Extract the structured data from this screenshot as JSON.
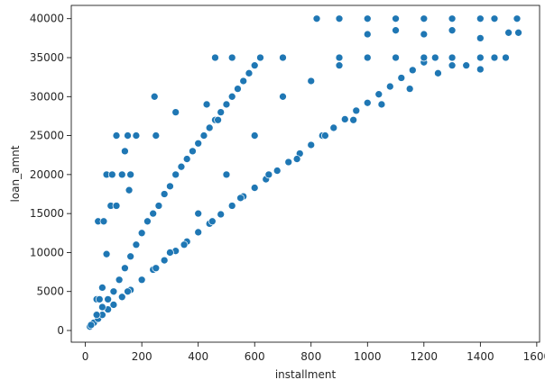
{
  "chart_data": {
    "type": "scatter",
    "title": "",
    "xlabel": "installment",
    "ylabel": "loan_amnt",
    "xlim": [
      -50,
      1610
    ],
    "ylim": [
      -1500,
      41700
    ],
    "xticks": [
      0,
      200,
      400,
      600,
      800,
      1000,
      1200,
      1400,
      1600
    ],
    "yticks": [
      0,
      5000,
      10000,
      15000,
      20000,
      25000,
      30000,
      35000,
      40000
    ],
    "xtick_labels": [
      "0",
      "200",
      "400",
      "600",
      "800",
      "1000",
      "1200",
      "1400",
      "1600"
    ],
    "ytick_labels": [
      "0",
      "5000",
      "10000",
      "15000",
      "20000",
      "25000",
      "30000",
      "35000",
      "40000"
    ],
    "grid": false,
    "legend": "none",
    "marker_color": "#1f77b4",
    "marker_edge_color": "#ffffff",
    "series": [
      {
        "points": [
          [
            16,
            500
          ],
          [
            30,
            1000
          ],
          [
            45,
            1500
          ],
          [
            60,
            2000
          ],
          [
            80,
            2700
          ],
          [
            100,
            3300
          ],
          [
            130,
            4300
          ],
          [
            160,
            5200
          ],
          [
            200,
            6500
          ],
          [
            240,
            7800
          ],
          [
            280,
            9000
          ],
          [
            320,
            10200
          ],
          [
            360,
            11400
          ],
          [
            400,
            12600
          ],
          [
            440,
            13700
          ],
          [
            480,
            14900
          ],
          [
            520,
            16000
          ],
          [
            560,
            17200
          ],
          [
            600,
            18300
          ],
          [
            640,
            19400
          ],
          [
            680,
            20500
          ],
          [
            720,
            21600
          ],
          [
            760,
            22700
          ],
          [
            800,
            23800
          ],
          [
            840,
            25000
          ],
          [
            880,
            26000
          ],
          [
            920,
            27100
          ],
          [
            960,
            28200
          ],
          [
            1000,
            29200
          ],
          [
            1040,
            30300
          ],
          [
            1080,
            31300
          ],
          [
            1120,
            32400
          ],
          [
            1160,
            33400
          ],
          [
            1200,
            34400
          ],
          [
            1240,
            35000
          ],
          [
            20,
            700
          ],
          [
            40,
            2000
          ],
          [
            60,
            3000
          ],
          [
            80,
            4000
          ],
          [
            100,
            5000
          ],
          [
            120,
            6500
          ],
          [
            140,
            8000
          ],
          [
            160,
            9500
          ],
          [
            180,
            11000
          ],
          [
            200,
            12500
          ],
          [
            220,
            14000
          ],
          [
            240,
            15000
          ],
          [
            260,
            16000
          ],
          [
            280,
            17500
          ],
          [
            300,
            18500
          ],
          [
            320,
            20000
          ],
          [
            340,
            21000
          ],
          [
            360,
            22000
          ],
          [
            380,
            23000
          ],
          [
            400,
            24000
          ],
          [
            420,
            25000
          ],
          [
            440,
            26000
          ],
          [
            460,
            27000
          ],
          [
            480,
            28000
          ],
          [
            500,
            29000
          ],
          [
            520,
            30000
          ],
          [
            540,
            31000
          ],
          [
            560,
            32000
          ],
          [
            580,
            33000
          ],
          [
            600,
            34000
          ],
          [
            620,
            35000
          ],
          [
            300,
            10000
          ],
          [
            400,
            15000
          ],
          [
            500,
            20000
          ],
          [
            600,
            25000
          ],
          [
            700,
            30000
          ],
          [
            800,
            32000
          ],
          [
            900,
            34000
          ],
          [
            1000,
            35000
          ],
          [
            1100,
            35000
          ],
          [
            1200,
            35000
          ],
          [
            1300,
            35000
          ],
          [
            1400,
            35000
          ],
          [
            1450,
            35000
          ],
          [
            1350,
            34000
          ],
          [
            1250,
            33000
          ],
          [
            1150,
            31000
          ],
          [
            1050,
            29000
          ],
          [
            950,
            27000
          ],
          [
            850,
            25000
          ],
          [
            750,
            22000
          ],
          [
            650,
            20000
          ],
          [
            550,
            17000
          ],
          [
            450,
            14000
          ],
          [
            350,
            11000
          ],
          [
            250,
            8000
          ],
          [
            150,
            5000
          ],
          [
            460,
            35000
          ],
          [
            520,
            35000
          ],
          [
            700,
            35000
          ],
          [
            900,
            35000
          ],
          [
            1300,
            34000
          ],
          [
            1400,
            33500
          ],
          [
            820,
            40000
          ],
          [
            900,
            40000
          ],
          [
            1000,
            40000
          ],
          [
            1100,
            40000
          ],
          [
            1200,
            40000
          ],
          [
            1300,
            40000
          ],
          [
            1400,
            40000
          ],
          [
            1450,
            40000
          ],
          [
            1530,
            40000
          ],
          [
            1000,
            38000
          ],
          [
            1100,
            38500
          ],
          [
            1200,
            38000
          ],
          [
            1300,
            38500
          ],
          [
            1400,
            37500
          ],
          [
            1500,
            38200
          ],
          [
            1535,
            38200
          ],
          [
            1490,
            35000
          ],
          [
            45,
            14000
          ],
          [
            65,
            14000
          ],
          [
            75,
            20000
          ],
          [
            95,
            20000
          ],
          [
            90,
            16000
          ],
          [
            110,
            16000
          ],
          [
            110,
            25000
          ],
          [
            150,
            25000
          ],
          [
            180,
            25000
          ],
          [
            130,
            20000
          ],
          [
            160,
            20000
          ],
          [
            140,
            23000
          ],
          [
            155,
            18000
          ],
          [
            245,
            30000
          ],
          [
            250,
            25000
          ],
          [
            320,
            28000
          ],
          [
            430,
            29000
          ],
          [
            470,
            27000
          ],
          [
            75,
            9800
          ],
          [
            60,
            5500
          ],
          [
            40,
            4000
          ],
          [
            50,
            4000
          ]
        ]
      }
    ]
  }
}
